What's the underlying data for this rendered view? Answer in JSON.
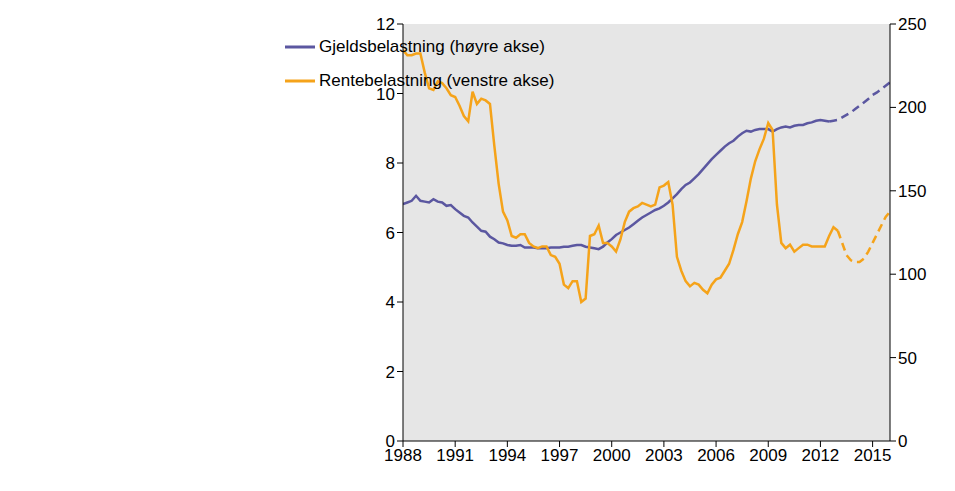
{
  "chart_data": {
    "type": "line",
    "grid": false,
    "legend": "top",
    "x": [
      1988,
      1988.25,
      1988.5,
      1988.75,
      1989,
      1989.25,
      1989.5,
      1989.75,
      1990,
      1990.25,
      1990.5,
      1990.75,
      1991,
      1991.25,
      1991.5,
      1991.75,
      1992,
      1992.25,
      1992.5,
      1992.75,
      1993,
      1993.25,
      1993.5,
      1993.75,
      1994,
      1994.25,
      1994.5,
      1994.75,
      1995,
      1995.25,
      1995.5,
      1995.75,
      1996,
      1996.25,
      1996.5,
      1996.75,
      1997,
      1997.25,
      1997.5,
      1997.75,
      1998,
      1998.25,
      1998.5,
      1998.75,
      1999,
      1999.25,
      1999.5,
      1999.75,
      2000,
      2000.25,
      2000.5,
      2000.75,
      2001,
      2001.25,
      2001.5,
      2001.75,
      2002,
      2002.25,
      2002.5,
      2002.75,
      2003,
      2003.25,
      2003.5,
      2003.75,
      2004,
      2004.25,
      2004.5,
      2004.75,
      2005,
      2005.25,
      2005.5,
      2005.75,
      2006,
      2006.25,
      2006.5,
      2006.75,
      2007,
      2007.25,
      2007.5,
      2007.75,
      2008,
      2008.25,
      2008.5,
      2008.75,
      2009,
      2009.25,
      2009.5,
      2009.75,
      2010,
      2010.25,
      2010.5,
      2010.75,
      2011,
      2011.25,
      2011.5,
      2011.75,
      2012,
      2012.25,
      2012.5,
      2012.75,
      2013,
      2013.25,
      2013.5,
      2013.75,
      2014,
      2014.25,
      2014.5,
      2014.75,
      2015,
      2015.25,
      2015.5,
      2015.75,
      2016
    ],
    "xlim": [
      1988,
      2016
    ],
    "xticks": [
      1988,
      1991,
      1994,
      1997,
      2000,
      2003,
      2006,
      2009,
      2012,
      2015
    ],
    "ylim": [
      0,
      12
    ],
    "yticks": [
      0,
      2,
      4,
      6,
      8,
      10,
      12
    ],
    "y2lim": [
      0,
      250
    ],
    "y2ticks": [
      0,
      50,
      100,
      150,
      200,
      250
    ],
    "series": [
      {
        "name": "Gjeldsbelastning (høyre akse)",
        "color": "#5b57a0",
        "axis": "y2",
        "line_style": "solid",
        "values": [
          142,
          143,
          144,
          147,
          144,
          143.5,
          143,
          145,
          143.5,
          143,
          141,
          141.5,
          139,
          137,
          135,
          134,
          131,
          128.5,
          126,
          125.5,
          122.5,
          121,
          119,
          118.5,
          117.5,
          117,
          117,
          117.5,
          116,
          116,
          116,
          115.5,
          115.5,
          115.5,
          116,
          116,
          116,
          116.5,
          116.5,
          117,
          117.5,
          117.5,
          116.5,
          116,
          115.5,
          115,
          116.5,
          119,
          121,
          123.5,
          125,
          126.5,
          128,
          130,
          132,
          134,
          135.5,
          137,
          138.5,
          139.5,
          141,
          143,
          145.5,
          148,
          151,
          153.5,
          155,
          157.5,
          160,
          163,
          166,
          169,
          171.5,
          174,
          176.5,
          178.5,
          180,
          182.5,
          184.5,
          186,
          185.5,
          186.5,
          187,
          187,
          187,
          185.5,
          187,
          188,
          188.5,
          188,
          189,
          189.5,
          189.5,
          190.5,
          191,
          192,
          192.5,
          192,
          191.5,
          null,
          null,
          null,
          null,
          null,
          null,
          null,
          null,
          null,
          null,
          null,
          null,
          null,
          null
        ]
      },
      {
        "name": "Rentebelastning (venstre akse)",
        "color": "#f5a31a",
        "axis": "y",
        "line_style": "solid",
        "values": [
          11.25,
          11.1,
          11.1,
          11.15,
          11.15,
          10.6,
          10.15,
          10.1,
          10.35,
          10.3,
          10.15,
          9.95,
          9.9,
          9.65,
          9.35,
          9.2,
          10.05,
          9.7,
          9.85,
          9.8,
          9.7,
          8.5,
          7.4,
          6.6,
          6.35,
          5.9,
          5.85,
          5.95,
          5.95,
          5.7,
          5.6,
          5.55,
          5.6,
          5.6,
          5.35,
          5.3,
          5.1,
          4.5,
          4.4,
          4.6,
          4.6,
          4.0,
          4.1,
          5.9,
          5.95,
          6.2,
          5.7,
          5.7,
          5.6,
          5.45,
          5.8,
          6.3,
          6.6,
          6.7,
          6.75,
          6.85,
          6.8,
          6.75,
          6.8,
          7.3,
          7.35,
          7.45,
          6.8,
          5.3,
          4.9,
          4.6,
          4.45,
          4.55,
          4.5,
          4.35,
          4.25,
          4.5,
          4.65,
          4.7,
          4.9,
          5.1,
          5.5,
          5.95,
          6.3,
          6.9,
          7.55,
          8.05,
          8.4,
          8.7,
          9.15,
          8.95,
          6.8,
          5.7,
          5.55,
          5.65,
          5.45,
          5.55,
          5.65,
          5.65,
          5.6,
          5.6,
          5.6,
          5.6,
          5.9,
          6.15,
          6.05,
          null,
          null,
          null,
          null,
          null,
          null,
          null,
          null,
          null,
          null,
          null,
          null
        ]
      },
      {
        "name": "Gjeldsbelastning (høyre akse)",
        "color": "#5b57a0",
        "axis": "y2",
        "line_style": "dashed",
        "values": [
          null,
          null,
          null,
          null,
          null,
          null,
          null,
          null,
          null,
          null,
          null,
          null,
          null,
          null,
          null,
          null,
          null,
          null,
          null,
          null,
          null,
          null,
          null,
          null,
          null,
          null,
          null,
          null,
          null,
          null,
          null,
          null,
          null,
          null,
          null,
          null,
          null,
          null,
          null,
          null,
          null,
          null,
          null,
          null,
          null,
          null,
          null,
          null,
          null,
          null,
          null,
          null,
          null,
          null,
          null,
          null,
          null,
          null,
          null,
          null,
          null,
          null,
          null,
          null,
          null,
          null,
          null,
          null,
          null,
          null,
          null,
          null,
          null,
          null,
          null,
          null,
          null,
          null,
          null,
          null,
          null,
          null,
          null,
          null,
          null,
          null,
          null,
          null,
          null,
          null,
          null,
          null,
          null,
          null,
          null,
          null,
          null,
          null,
          191.5,
          192,
          192.5,
          194,
          195.5,
          197,
          199,
          201,
          203,
          205,
          207.5,
          209,
          211,
          213,
          215
        ]
      },
      {
        "name": "Rentebelastning (venstre akse)",
        "color": "#f5a31a",
        "axis": "y",
        "line_style": "dashed",
        "values": [
          null,
          null,
          null,
          null,
          null,
          null,
          null,
          null,
          null,
          null,
          null,
          null,
          null,
          null,
          null,
          null,
          null,
          null,
          null,
          null,
          null,
          null,
          null,
          null,
          null,
          null,
          null,
          null,
          null,
          null,
          null,
          null,
          null,
          null,
          null,
          null,
          null,
          null,
          null,
          null,
          null,
          null,
          null,
          null,
          null,
          null,
          null,
          null,
          null,
          null,
          null,
          null,
          null,
          null,
          null,
          null,
          null,
          null,
          null,
          null,
          null,
          null,
          null,
          null,
          null,
          null,
          null,
          null,
          null,
          null,
          null,
          null,
          null,
          null,
          null,
          null,
          null,
          null,
          null,
          null,
          null,
          null,
          null,
          null,
          null,
          null,
          null,
          null,
          null,
          null,
          null,
          null,
          null,
          null,
          null,
          null,
          null,
          null,
          null,
          null,
          6.05,
          5.7,
          5.35,
          5.2,
          5.15,
          5.15,
          5.25,
          5.45,
          5.7,
          5.95,
          6.2,
          6.45,
          6.6
        ]
      }
    ]
  }
}
